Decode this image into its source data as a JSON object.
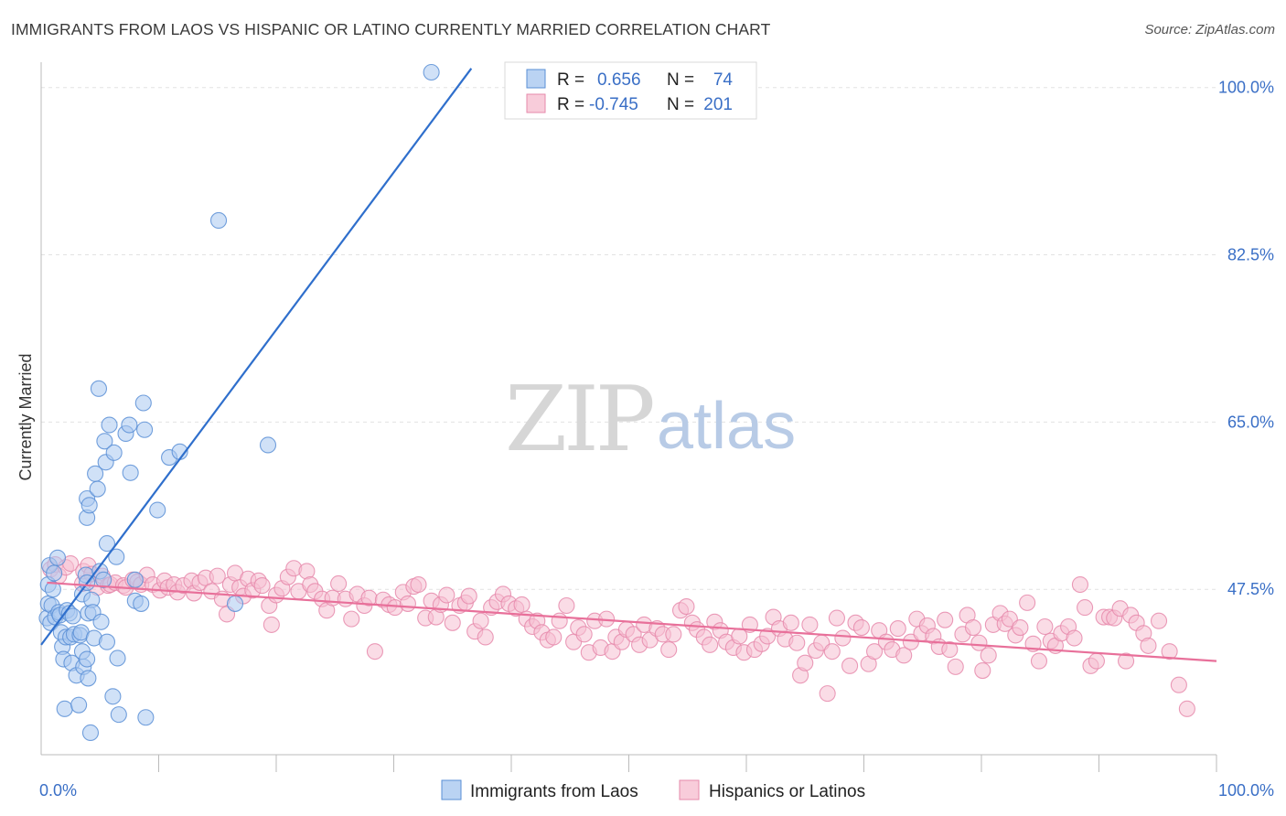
{
  "title": "IMMIGRANTS FROM LAOS VS HISPANIC OR LATINO CURRENTLY MARRIED CORRELATION CHART",
  "source": "Source: ZipAtlas.com",
  "watermark": {
    "zip": "ZIP",
    "atlas": "atlas"
  },
  "colors": {
    "blue_fill": "#a9c8f0",
    "blue_stroke": "#5a8fd6",
    "blue_line": "#2f6fcc",
    "pink_fill": "#f6bfd1",
    "pink_stroke": "#e68aab",
    "pink_line": "#e8709a",
    "axis_text": "#3a6fc6",
    "grid": "#e2e2e2"
  },
  "legend": {
    "rows": [
      {
        "r_label": "R =",
        "r_value": "0.656",
        "n_label": "N =",
        "n_value": "74"
      },
      {
        "r_label": "R =",
        "r_value": "-0.745",
        "n_label": "N =",
        "n_value": "201"
      }
    ]
  },
  "bottom_legend": [
    "Immigrants from Laos",
    "Hispanics or Latinos"
  ],
  "chart_data": {
    "type": "scatter",
    "xlabel": "",
    "ylabel": "Currently Married",
    "xlim": [
      0,
      100
    ],
    "ylim": [
      30.2,
      101.6
    ],
    "x_tick_labels": [
      {
        "value": 0,
        "label": "0.0%"
      },
      {
        "value": 100,
        "label": "100.0%"
      }
    ],
    "x_minor_ticks": [
      10,
      20,
      30,
      40,
      50,
      60,
      70,
      80,
      90,
      100
    ],
    "y_ticks": [
      {
        "value": 47.5,
        "label": "47.5%"
      },
      {
        "value": 65.0,
        "label": "65.0%"
      },
      {
        "value": 82.5,
        "label": "82.5%"
      },
      {
        "value": 100.0,
        "label": "100.0%"
      }
    ],
    "grid": true,
    "series": [
      {
        "name": "Immigrants from Laos",
        "color": "#a9c8f0",
        "trend": {
          "x": [
            0.0,
            36.6
          ],
          "y": [
            41.7,
            102.0
          ]
        },
        "points": [
          [
            0.5,
            44.5
          ],
          [
            0.6,
            46.0
          ],
          [
            0.6,
            48.0
          ],
          [
            0.7,
            50.0
          ],
          [
            0.8,
            44.0
          ],
          [
            0.9,
            45.8
          ],
          [
            1.0,
            47.5
          ],
          [
            1.1,
            49.2
          ],
          [
            1.2,
            44.6
          ],
          [
            1.4,
            50.8
          ],
          [
            1.5,
            45.1
          ],
          [
            1.6,
            44.8
          ],
          [
            1.7,
            43.0
          ],
          [
            1.8,
            41.5
          ],
          [
            1.9,
            40.2
          ],
          [
            2.0,
            35.0
          ],
          [
            2.1,
            42.5
          ],
          [
            2.2,
            45.3
          ],
          [
            2.4,
            45.0
          ],
          [
            2.5,
            42.5
          ],
          [
            2.6,
            39.8
          ],
          [
            2.7,
            44.7
          ],
          [
            2.8,
            42.8
          ],
          [
            3.0,
            38.5
          ],
          [
            3.2,
            35.4
          ],
          [
            3.3,
            42.7
          ],
          [
            3.4,
            43.0
          ],
          [
            3.5,
            41.0
          ],
          [
            3.5,
            47.0
          ],
          [
            3.6,
            39.4
          ],
          [
            3.8,
            49.0
          ],
          [
            3.9,
            40.2
          ],
          [
            3.9,
            48.2
          ],
          [
            3.9,
            55.0
          ],
          [
            3.9,
            57.0
          ],
          [
            4.0,
            38.2
          ],
          [
            4.0,
            45.0
          ],
          [
            4.1,
            56.3
          ],
          [
            4.2,
            32.5
          ],
          [
            4.3,
            46.4
          ],
          [
            4.4,
            45.1
          ],
          [
            4.5,
            42.4
          ],
          [
            4.6,
            59.6
          ],
          [
            4.8,
            58.0
          ],
          [
            4.9,
            68.5
          ],
          [
            5.0,
            49.4
          ],
          [
            5.1,
            44.1
          ],
          [
            5.3,
            48.5
          ],
          [
            5.4,
            63.0
          ],
          [
            5.5,
            60.8
          ],
          [
            5.6,
            42.0
          ],
          [
            5.6,
            52.3
          ],
          [
            5.8,
            64.7
          ],
          [
            6.1,
            36.3
          ],
          [
            6.2,
            61.8
          ],
          [
            6.4,
            50.9
          ],
          [
            6.5,
            40.3
          ],
          [
            6.6,
            34.4
          ],
          [
            7.2,
            63.8
          ],
          [
            7.5,
            64.7
          ],
          [
            7.6,
            59.7
          ],
          [
            8.0,
            48.5
          ],
          [
            8.0,
            46.3
          ],
          [
            8.5,
            46.0
          ],
          [
            8.7,
            67.0
          ],
          [
            8.8,
            64.2
          ],
          [
            8.9,
            34.1
          ],
          [
            9.9,
            55.8
          ],
          [
            10.9,
            61.3
          ],
          [
            11.8,
            61.9
          ],
          [
            15.1,
            86.1
          ],
          [
            16.5,
            46.0
          ],
          [
            19.3,
            62.6
          ],
          [
            33.2,
            101.6
          ]
        ]
      },
      {
        "name": "Hispanics or Latinos",
        "color": "#f6bfd1",
        "trend": {
          "x": [
            0.5,
            100.0
          ],
          "y": [
            48.2,
            40.0
          ]
        },
        "points": [
          [
            0.8,
            49.6
          ],
          [
            1.2,
            50.1
          ],
          [
            1.5,
            48.9
          ],
          [
            2.1,
            49.8
          ],
          [
            2.5,
            50.2
          ],
          [
            3.5,
            48.1
          ],
          [
            3.6,
            49.4
          ],
          [
            4.0,
            50.0
          ],
          [
            4.3,
            49.1
          ],
          [
            4.8,
            47.7
          ],
          [
            5.2,
            48.9
          ],
          [
            5.7,
            47.9
          ],
          [
            5.9,
            48.0
          ],
          [
            6.3,
            48.2
          ],
          [
            7.0,
            47.9
          ],
          [
            7.2,
            47.7
          ],
          [
            7.8,
            48.5
          ],
          [
            8.2,
            48.3
          ],
          [
            8.5,
            48.0
          ],
          [
            9.0,
            49.0
          ],
          [
            9.5,
            48.0
          ],
          [
            10.1,
            47.4
          ],
          [
            10.5,
            48.4
          ],
          [
            10.8,
            47.7
          ],
          [
            11.3,
            48.0
          ],
          [
            11.6,
            47.2
          ],
          [
            12.1,
            47.9
          ],
          [
            12.8,
            48.4
          ],
          [
            13.0,
            47.1
          ],
          [
            13.5,
            48.2
          ],
          [
            14.0,
            48.7
          ],
          [
            14.5,
            47.3
          ],
          [
            15.0,
            48.9
          ],
          [
            15.4,
            46.5
          ],
          [
            15.8,
            44.9
          ],
          [
            16.1,
            48.0
          ],
          [
            16.5,
            49.2
          ],
          [
            16.9,
            47.7
          ],
          [
            17.2,
            46.8
          ],
          [
            17.6,
            48.6
          ],
          [
            18.0,
            47.4
          ],
          [
            18.5,
            48.4
          ],
          [
            18.8,
            47.9
          ],
          [
            19.4,
            45.8
          ],
          [
            19.6,
            43.8
          ],
          [
            20.0,
            46.9
          ],
          [
            20.5,
            47.6
          ],
          [
            21.0,
            48.8
          ],
          [
            21.5,
            49.7
          ],
          [
            21.9,
            47.3
          ],
          [
            22.6,
            49.4
          ],
          [
            22.9,
            48.0
          ],
          [
            23.3,
            47.3
          ],
          [
            23.9,
            46.5
          ],
          [
            24.3,
            45.3
          ],
          [
            24.8,
            46.6
          ],
          [
            25.3,
            48.1
          ],
          [
            25.9,
            46.5
          ],
          [
            26.4,
            44.4
          ],
          [
            26.9,
            47.0
          ],
          [
            27.5,
            45.8
          ],
          [
            27.9,
            46.6
          ],
          [
            28.4,
            41.0
          ],
          [
            29.1,
            46.4
          ],
          [
            29.6,
            45.9
          ],
          [
            30.1,
            45.6
          ],
          [
            30.8,
            47.2
          ],
          [
            31.2,
            46.0
          ],
          [
            31.7,
            47.8
          ],
          [
            32.1,
            48.0
          ],
          [
            32.7,
            44.5
          ],
          [
            33.2,
            46.3
          ],
          [
            33.6,
            44.6
          ],
          [
            34.0,
            45.9
          ],
          [
            34.5,
            46.9
          ],
          [
            35.0,
            44.0
          ],
          [
            35.6,
            45.8
          ],
          [
            36.1,
            46.1
          ],
          [
            36.4,
            46.8
          ],
          [
            36.9,
            43.1
          ],
          [
            37.4,
            44.2
          ],
          [
            37.8,
            42.5
          ],
          [
            38.3,
            45.6
          ],
          [
            38.8,
            46.2
          ],
          [
            39.3,
            47.0
          ],
          [
            39.8,
            46.0
          ],
          [
            40.4,
            45.5
          ],
          [
            40.9,
            45.9
          ],
          [
            41.3,
            44.4
          ],
          [
            41.8,
            43.6
          ],
          [
            42.2,
            44.2
          ],
          [
            42.6,
            43.0
          ],
          [
            43.1,
            42.2
          ],
          [
            43.6,
            42.5
          ],
          [
            44.1,
            44.2
          ],
          [
            44.7,
            45.8
          ],
          [
            45.3,
            42.0
          ],
          [
            45.7,
            43.5
          ],
          [
            46.2,
            42.8
          ],
          [
            46.6,
            40.9
          ],
          [
            47.1,
            44.2
          ],
          [
            47.6,
            41.4
          ],
          [
            48.1,
            44.4
          ],
          [
            48.6,
            41.0
          ],
          [
            48.9,
            42.5
          ],
          [
            49.4,
            42.0
          ],
          [
            49.8,
            43.3
          ],
          [
            50.4,
            42.8
          ],
          [
            50.9,
            41.7
          ],
          [
            51.3,
            43.8
          ],
          [
            51.8,
            42.2
          ],
          [
            52.4,
            43.4
          ],
          [
            52.9,
            42.8
          ],
          [
            53.4,
            41.2
          ],
          [
            53.8,
            42.8
          ],
          [
            54.4,
            45.3
          ],
          [
            54.9,
            45.7
          ],
          [
            55.4,
            44.0
          ],
          [
            55.8,
            43.3
          ],
          [
            56.4,
            42.5
          ],
          [
            56.9,
            41.7
          ],
          [
            57.3,
            44.1
          ],
          [
            57.8,
            43.2
          ],
          [
            58.3,
            42.0
          ],
          [
            58.9,
            41.4
          ],
          [
            59.4,
            42.6
          ],
          [
            59.8,
            40.9
          ],
          [
            60.3,
            43.8
          ],
          [
            60.7,
            41.2
          ],
          [
            61.3,
            41.8
          ],
          [
            61.8,
            42.6
          ],
          [
            62.3,
            44.6
          ],
          [
            62.8,
            43.4
          ],
          [
            63.3,
            42.3
          ],
          [
            63.8,
            44.0
          ],
          [
            64.3,
            41.9
          ],
          [
            64.6,
            38.5
          ],
          [
            65.0,
            39.8
          ],
          [
            65.4,
            43.8
          ],
          [
            65.9,
            41.1
          ],
          [
            66.4,
            41.9
          ],
          [
            66.9,
            36.6
          ],
          [
            67.3,
            41.0
          ],
          [
            67.7,
            44.5
          ],
          [
            68.2,
            42.4
          ],
          [
            68.8,
            39.5
          ],
          [
            69.3,
            44.0
          ],
          [
            69.8,
            43.5
          ],
          [
            70.4,
            39.7
          ],
          [
            70.9,
            41.0
          ],
          [
            71.3,
            43.2
          ],
          [
            71.9,
            42.0
          ],
          [
            72.4,
            41.2
          ],
          [
            72.9,
            43.4
          ],
          [
            73.4,
            40.6
          ],
          [
            74.0,
            42.0
          ],
          [
            74.5,
            44.4
          ],
          [
            74.9,
            42.9
          ],
          [
            75.4,
            43.7
          ],
          [
            75.9,
            42.6
          ],
          [
            76.4,
            41.5
          ],
          [
            76.9,
            44.3
          ],
          [
            77.3,
            41.2
          ],
          [
            77.8,
            39.4
          ],
          [
            78.4,
            42.8
          ],
          [
            78.8,
            44.8
          ],
          [
            79.3,
            43.5
          ],
          [
            79.8,
            41.9
          ],
          [
            80.1,
            39.0
          ],
          [
            80.6,
            40.6
          ],
          [
            81.0,
            43.8
          ],
          [
            81.6,
            45.0
          ],
          [
            82.0,
            43.9
          ],
          [
            82.4,
            44.4
          ],
          [
            82.9,
            42.7
          ],
          [
            83.3,
            43.5
          ],
          [
            83.9,
            46.1
          ],
          [
            84.4,
            41.8
          ],
          [
            84.9,
            40.0
          ],
          [
            85.4,
            43.6
          ],
          [
            85.9,
            42.1
          ],
          [
            86.3,
            41.6
          ],
          [
            86.8,
            42.9
          ],
          [
            87.4,
            43.6
          ],
          [
            87.9,
            42.4
          ],
          [
            88.4,
            48.0
          ],
          [
            88.8,
            45.6
          ],
          [
            89.3,
            39.5
          ],
          [
            89.8,
            40.0
          ],
          [
            90.4,
            44.6
          ],
          [
            90.9,
            44.6
          ],
          [
            91.3,
            44.5
          ],
          [
            91.8,
            45.5
          ],
          [
            92.3,
            40.0
          ],
          [
            92.7,
            44.8
          ],
          [
            93.2,
            44.0
          ],
          [
            93.8,
            42.9
          ],
          [
            94.2,
            41.6
          ],
          [
            95.1,
            44.2
          ],
          [
            96.0,
            41.0
          ],
          [
            96.8,
            37.5
          ],
          [
            97.5,
            35.0
          ]
        ]
      }
    ]
  }
}
